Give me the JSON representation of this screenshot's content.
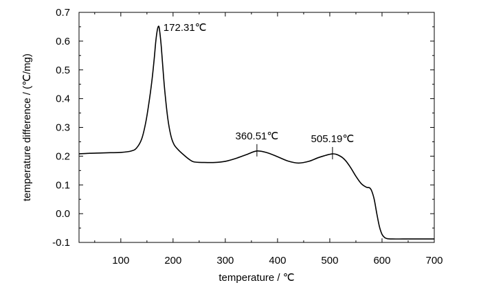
{
  "chart_data": {
    "type": "line",
    "title": "",
    "xlabel": "temperature / ℃",
    "ylabel": "temperature difference / (℃/mg)",
    "xlim": [
      20,
      700
    ],
    "ylim": [
      -0.1,
      0.7
    ],
    "xticks": [
      100,
      200,
      300,
      400,
      500,
      600,
      700
    ],
    "xtick_labels": [
      "100",
      "200",
      "300",
      "400",
      "500",
      "600",
      "700"
    ],
    "yticks": [
      -0.1,
      0.0,
      0.1,
      0.2,
      0.3,
      0.4,
      0.5,
      0.6,
      0.7
    ],
    "ytick_labels": [
      "-0.1",
      "0.0",
      "0.1",
      "0.2",
      "0.3",
      "0.4",
      "0.5",
      "0.6",
      "0.7"
    ],
    "grid": false,
    "series": [
      {
        "name": "",
        "color": "#000000",
        "x": [
          20,
          40,
          60,
          80,
          100,
          120,
          130,
          140,
          148,
          155,
          160,
          164,
          167,
          170,
          172.31,
          174,
          177,
          180,
          184,
          190,
          196,
          202,
          210,
          220,
          230,
          240,
          260,
          280,
          300,
          320,
          340,
          360.51,
          380,
          400,
          420,
          440,
          460,
          480,
          505.19,
          520,
          530,
          540,
          550,
          560,
          570,
          576,
          580,
          585,
          590,
          595,
          600,
          605,
          610,
          620,
          640,
          660,
          680,
          700
        ],
        "y": [
          0.208,
          0.21,
          0.211,
          0.212,
          0.213,
          0.218,
          0.228,
          0.26,
          0.32,
          0.4,
          0.47,
          0.54,
          0.6,
          0.64,
          0.652,
          0.64,
          0.59,
          0.52,
          0.43,
          0.33,
          0.27,
          0.24,
          0.222,
          0.205,
          0.19,
          0.18,
          0.178,
          0.178,
          0.182,
          0.192,
          0.205,
          0.218,
          0.212,
          0.198,
          0.183,
          0.176,
          0.182,
          0.196,
          0.208,
          0.2,
          0.185,
          0.16,
          0.13,
          0.105,
          0.092,
          0.09,
          0.08,
          0.05,
          0.0,
          -0.045,
          -0.072,
          -0.083,
          -0.087,
          -0.088,
          -0.088,
          -0.088,
          -0.088,
          -0.088
        ]
      }
    ],
    "annotations": [
      {
        "x": 172.31,
        "y": 0.652,
        "text": "172.31℃",
        "marker": false
      },
      {
        "x": 360.51,
        "y": 0.218,
        "text": "360.51℃",
        "marker": true
      },
      {
        "x": 505.19,
        "y": 0.208,
        "text": "505.19℃",
        "marker": true
      }
    ]
  }
}
